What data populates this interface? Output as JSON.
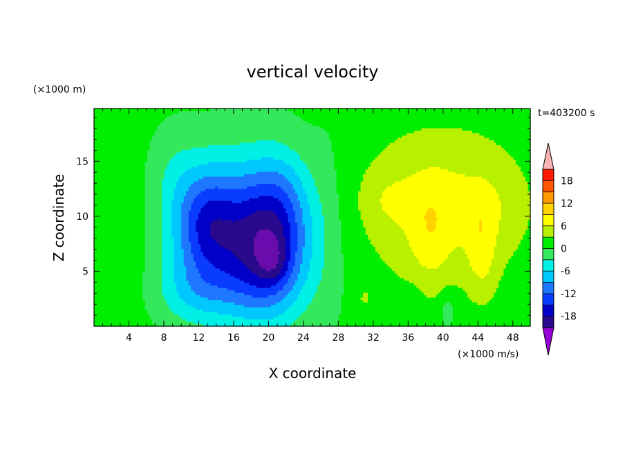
{
  "chart_data": {
    "type": "heatmap",
    "title": "vertical velocity",
    "xlabel": "X coordinate",
    "ylabel": "Z coordinate",
    "x_unit": "(×1000 m/s)",
    "y_unit": "(×1000 m)",
    "time_label": "t=403200 s",
    "xlim": [
      0,
      50
    ],
    "ylim": [
      0,
      19.8
    ],
    "x_ticks": [
      4,
      8,
      12,
      16,
      20,
      24,
      28,
      32,
      36,
      40,
      44,
      48
    ],
    "y_ticks": [
      5,
      10,
      15
    ],
    "colorbar": {
      "levels": [
        -21,
        -18,
        -15,
        -12,
        -9,
        -6,
        -3,
        0,
        3,
        6,
        9,
        12,
        15,
        18,
        21
      ],
      "labels": [
        -18,
        -12,
        -6,
        0,
        6,
        12,
        18
      ],
      "colors": [
        "#6a0dad",
        "#2a0a8c",
        "#0000c8",
        "#0a3cff",
        "#1e78ff",
        "#00c8ff",
        "#00f0e6",
        "#34e85c",
        "#00ee00",
        "#b8f000",
        "#ffff00",
        "#ffd200",
        "#ff9900",
        "#ff5500",
        "#ff1a00",
        "#f5a3a3"
      ],
      "under_color": "#9400d3",
      "over_color": "#f7b2b2"
    },
    "features": [
      {
        "x": 20,
        "z": 8,
        "sx": 3.2,
        "sz": 4.5,
        "amp": -15
      },
      {
        "x": 13,
        "z": 9.5,
        "sx": 2.6,
        "sz": 3.5,
        "amp": -11
      },
      {
        "x": 16,
        "z": 9,
        "sx": 6,
        "sz": 5,
        "amp": -6
      },
      {
        "x": 16,
        "z": 4,
        "sx": 5,
        "sz": 3,
        "amp": -4
      },
      {
        "x": 20.5,
        "z": 6,
        "sx": 1.2,
        "sz": 1.5,
        "amp": -4
      },
      {
        "x": 22,
        "z": 12,
        "sx": 2,
        "sz": 3,
        "amp": -2
      },
      {
        "x": 11,
        "z": 3,
        "sx": 3,
        "sz": 2,
        "amp": -3
      },
      {
        "x": 40,
        "z": 11,
        "sx": 7,
        "sz": 5,
        "amp": 6
      },
      {
        "x": 38.5,
        "z": 8,
        "sx": 1.7,
        "sz": 3.5,
        "amp": 3
      },
      {
        "x": 44.5,
        "z": 6.5,
        "sx": 1.2,
        "sz": 3,
        "amp": 4
      },
      {
        "x": 34,
        "z": 11.5,
        "sx": 2,
        "sz": 1.5,
        "amp": 2
      },
      {
        "x": 45,
        "z": 11,
        "sx": 2,
        "sz": 2,
        "amp": 1.5
      },
      {
        "x": 31,
        "z": 2.5,
        "sx": 0.8,
        "sz": 1,
        "amp": 2
      },
      {
        "x": 40.5,
        "z": 1.5,
        "sx": 0.7,
        "sz": 1.2,
        "amp": -3
      },
      {
        "x": 36.5,
        "z": 2.0,
        "sx": 0.8,
        "sz": 1.2,
        "amp": -2
      },
      {
        "x": 4,
        "z": 8,
        "sx": 3,
        "sz": 6,
        "amp": 1.5
      },
      {
        "x": 9,
        "z": 14,
        "sx": 2,
        "sz": 3,
        "amp": -2
      },
      {
        "x": 27,
        "z": 10,
        "sx": 1.5,
        "sz": 8,
        "amp": -1.2
      }
    ]
  }
}
